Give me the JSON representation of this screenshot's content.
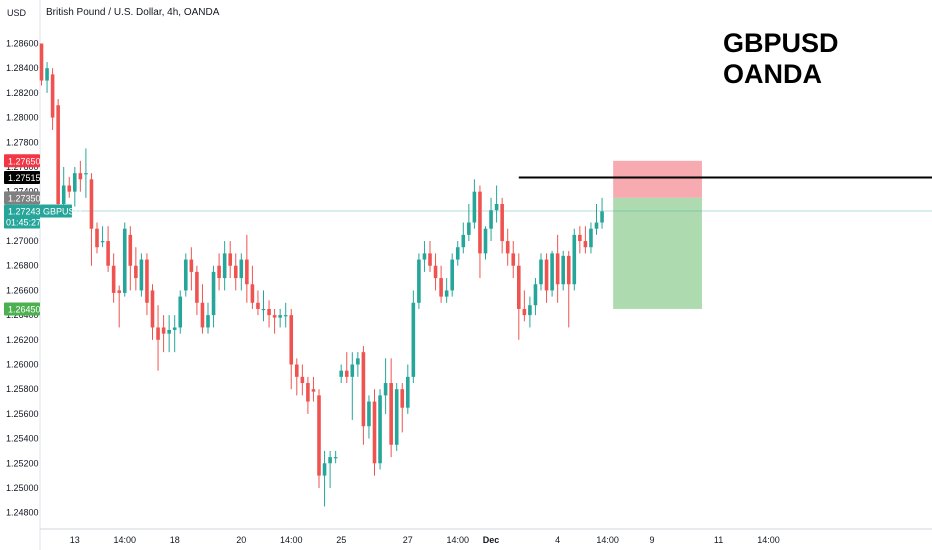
{
  "header": {
    "currency": "USD",
    "instrument": "British Pound / U.S. Dollar, 4h, OANDA"
  },
  "watermark": {
    "line1": "GBPUSD",
    "line2": "OANDA"
  },
  "colors": {
    "up": "#26a69a",
    "down": "#ef5350",
    "stop_zone": "#f7a1a8",
    "target_zone": "#a5d6a7",
    "resistance_line": "#000000",
    "grid_bottom": "#d1d4dc"
  },
  "price_tags": {
    "stop": {
      "label": "1.27650",
      "value": 1.2765,
      "color": "#f23645"
    },
    "line": {
      "label": "1.27515",
      "value": 1.27515,
      "color": "#000000"
    },
    "entry": {
      "label": "1.27350",
      "value": 1.2735,
      "color": "#808080"
    },
    "last": {
      "label": "1.27243",
      "countdown": "01:45:27",
      "symbol": "GBPUSD",
      "value": 1.27243,
      "color": "#26a69a"
    },
    "target": {
      "label": "1.26450",
      "value": 1.2645,
      "color": "#4caf50"
    }
  },
  "chart_data": {
    "type": "candlestick",
    "title": "British Pound / U.S. Dollar, 4h, OANDA",
    "y_unit": "USD",
    "ylim": [
      1.247,
      1.2875
    ],
    "y_ticks": [
      "1.28600",
      "1.28400",
      "1.28200",
      "1.28000",
      "1.27800",
      "1.27600",
      "1.27400",
      "1.27200",
      "1.27000",
      "1.26800",
      "1.26600",
      "1.26400",
      "1.26200",
      "1.26000",
      "1.25800",
      "1.25600",
      "1.25400",
      "1.25200",
      "1.25000",
      "1.24800"
    ],
    "x_ticks": [
      {
        "label": "13",
        "bar": 6
      },
      {
        "label": "14:00",
        "bar": 15
      },
      {
        "label": "18",
        "bar": 24
      },
      {
        "label": "20",
        "bar": 36
      },
      {
        "label": "14:00",
        "bar": 45
      },
      {
        "label": "25",
        "bar": 54
      },
      {
        "label": "27",
        "bar": 66
      },
      {
        "label": "14:00",
        "bar": 75
      },
      {
        "label": "Dec",
        "bar": 81
      },
      {
        "label": "4",
        "bar": 93
      },
      {
        "label": "14:00",
        "bar": 102
      },
      {
        "label": "9",
        "bar": 110
      },
      {
        "label": "11",
        "bar": 122
      },
      {
        "label": "14:00",
        "bar": 131
      }
    ],
    "candles": [
      [
        1.286,
        1.286,
        1.2826,
        1.283
      ],
      [
        1.283,
        1.2845,
        1.282,
        1.284
      ],
      [
        1.2835,
        1.284,
        1.279,
        1.28
      ],
      [
        1.281,
        1.2815,
        1.2725,
        1.273
      ],
      [
        1.273,
        1.276,
        1.2725,
        1.2745
      ],
      [
        1.2745,
        1.2752,
        1.2735,
        1.274
      ],
      [
        1.274,
        1.276,
        1.2728,
        1.2755
      ],
      [
        1.2755,
        1.2765,
        1.274,
        1.275
      ],
      [
        1.2755,
        1.2775,
        1.2735,
        1.2755
      ],
      [
        1.275,
        1.2755,
        1.268,
        1.271
      ],
      [
        1.271,
        1.2715,
        1.269,
        1.2695
      ],
      [
        1.27,
        1.2712,
        1.2695,
        1.27
      ],
      [
        1.27,
        1.2712,
        1.2675,
        1.268
      ],
      [
        1.268,
        1.269,
        1.265,
        1.2658
      ],
      [
        1.266,
        1.2664,
        1.263,
        1.2658
      ],
      [
        1.2658,
        1.2715,
        1.2655,
        1.271
      ],
      [
        1.2705,
        1.2712,
        1.266,
        1.268
      ],
      [
        1.268,
        1.2695,
        1.266,
        1.267
      ],
      [
        1.266,
        1.269,
        1.2655,
        1.2685
      ],
      [
        1.2685,
        1.269,
        1.264,
        1.265
      ],
      [
        1.266,
        1.2665,
        1.262,
        1.263
      ],
      [
        1.263,
        1.2648,
        1.2595,
        1.262
      ],
      [
        1.263,
        1.264,
        1.261,
        1.2625
      ],
      [
        1.2625,
        1.264,
        1.261,
        1.2628
      ],
      [
        1.2628,
        1.264,
        1.261,
        1.263
      ],
      [
        1.263,
        1.266,
        1.2625,
        1.2655
      ],
      [
        1.266,
        1.269,
        1.2655,
        1.2685
      ],
      [
        1.2685,
        1.2695,
        1.266,
        1.2675
      ],
      [
        1.2675,
        1.268,
        1.264,
        1.265
      ],
      [
        1.265,
        1.2665,
        1.2625,
        1.263
      ],
      [
        1.263,
        1.265,
        1.2625,
        1.264
      ],
      [
        1.264,
        1.268,
        1.263,
        1.2675
      ],
      [
        1.268,
        1.269,
        1.266,
        1.267
      ],
      [
        1.267,
        1.27,
        1.266,
        1.269
      ],
      [
        1.269,
        1.27,
        1.267,
        1.268
      ],
      [
        1.268,
        1.269,
        1.266,
        1.267
      ],
      [
        1.267,
        1.269,
        1.266,
        1.2685
      ],
      [
        1.2685,
        1.2705,
        1.265,
        1.2665
      ],
      [
        1.2665,
        1.268,
        1.2645,
        1.265
      ],
      [
        1.265,
        1.266,
        1.264,
        1.2645
      ],
      [
        1.2645,
        1.266,
        1.2635,
        1.2645
      ],
      [
        1.2645,
        1.2652,
        1.263,
        1.264
      ],
      [
        1.264,
        1.2645,
        1.2625,
        1.2638
      ],
      [
        1.2638,
        1.2645,
        1.263,
        1.264
      ],
      [
        1.264,
        1.265,
        1.263,
        1.264
      ],
      [
        1.264,
        1.2645,
        1.258,
        1.26
      ],
      [
        1.26,
        1.2605,
        1.2575,
        1.259
      ],
      [
        1.259,
        1.26,
        1.2575,
        1.2585
      ],
      [
        1.2585,
        1.259,
        1.256,
        1.257
      ],
      [
        1.258,
        1.259,
        1.257,
        1.2578
      ],
      [
        1.2575,
        1.258,
        1.25,
        1.251
      ],
      [
        1.251,
        1.253,
        1.2485,
        1.252
      ],
      [
        1.252,
        1.253,
        1.25,
        1.2525
      ],
      [
        1.2525,
        1.253,
        1.252,
        1.2525
      ],
      [
        1.259,
        1.26,
        1.2585,
        1.2595
      ],
      [
        1.2595,
        1.261,
        1.2585,
        1.259
      ],
      [
        1.259,
        1.261,
        1.2555,
        1.26
      ],
      [
        1.26,
        1.261,
        1.259,
        1.2605
      ],
      [
        1.261,
        1.2615,
        1.2535,
        1.255
      ],
      [
        1.255,
        1.2575,
        1.254,
        1.257
      ],
      [
        1.257,
        1.258,
        1.251,
        1.252
      ],
      [
        1.252,
        1.258,
        1.2515,
        1.2575
      ],
      [
        1.2575,
        1.2605,
        1.256,
        1.2585
      ],
      [
        1.2585,
        1.2605,
        1.2525,
        1.2535
      ],
      [
        1.2535,
        1.2585,
        1.253,
        1.258
      ],
      [
        1.258,
        1.2585,
        1.2545,
        1.2565
      ],
      [
        1.2565,
        1.26,
        1.256,
        1.259
      ],
      [
        1.259,
        1.266,
        1.2585,
        1.265
      ],
      [
        1.265,
        1.269,
        1.2645,
        1.2685
      ],
      [
        1.2685,
        1.27,
        1.2675,
        1.269
      ],
      [
        1.269,
        1.27,
        1.2675,
        1.268
      ],
      [
        1.268,
        1.269,
        1.266,
        1.267
      ],
      [
        1.267,
        1.268,
        1.265,
        1.2655
      ],
      [
        1.2655,
        1.267,
        1.265,
        1.266
      ],
      [
        1.266,
        1.269,
        1.2655,
        1.2685
      ],
      [
        1.2685,
        1.27,
        1.268,
        1.2695
      ],
      [
        1.2695,
        1.2715,
        1.269,
        1.2705
      ],
      [
        1.2705,
        1.273,
        1.27,
        1.2715
      ],
      [
        1.2715,
        1.275,
        1.271,
        1.274
      ],
      [
        1.274,
        1.2745,
        1.267,
        1.269
      ],
      [
        1.269,
        1.2712,
        1.2685,
        1.271
      ],
      [
        1.271,
        1.2735,
        1.27,
        1.2725
      ],
      [
        1.2725,
        1.2745,
        1.2715,
        1.273
      ],
      [
        1.273,
        1.2735,
        1.269,
        1.27
      ],
      [
        1.27,
        1.271,
        1.268,
        1.269
      ],
      [
        1.269,
        1.27,
        1.267,
        1.268
      ],
      [
        1.268,
        1.269,
        1.262,
        1.2645
      ],
      [
        1.2645,
        1.266,
        1.2635,
        1.264
      ],
      [
        1.264,
        1.2655,
        1.263,
        1.2648
      ],
      [
        1.2648,
        1.267,
        1.264,
        1.2665
      ],
      [
        1.2665,
        1.269,
        1.266,
        1.2685
      ],
      [
        1.2685,
        1.269,
        1.265,
        1.266
      ],
      [
        1.266,
        1.2692,
        1.2655,
        1.269
      ],
      [
        1.269,
        1.2705,
        1.265,
        1.2665
      ],
      [
        1.2665,
        1.2692,
        1.266,
        1.2688
      ],
      [
        1.2688,
        1.2692,
        1.263,
        1.2665
      ],
      [
        1.2665,
        1.271,
        1.266,
        1.2705
      ],
      [
        1.2705,
        1.2712,
        1.269,
        1.27
      ],
      [
        1.27,
        1.2712,
        1.269,
        1.2695
      ],
      [
        1.2695,
        1.2715,
        1.269,
        1.271
      ],
      [
        1.271,
        1.273,
        1.2705,
        1.2715
      ],
      [
        1.2715,
        1.2735,
        1.271,
        1.2724
      ]
    ],
    "horizontal_line": 1.27515,
    "position": {
      "entry": 1.2735,
      "stop": 1.2765,
      "target": 1.2645,
      "start_bar": 103,
      "end_bar": 119
    }
  }
}
